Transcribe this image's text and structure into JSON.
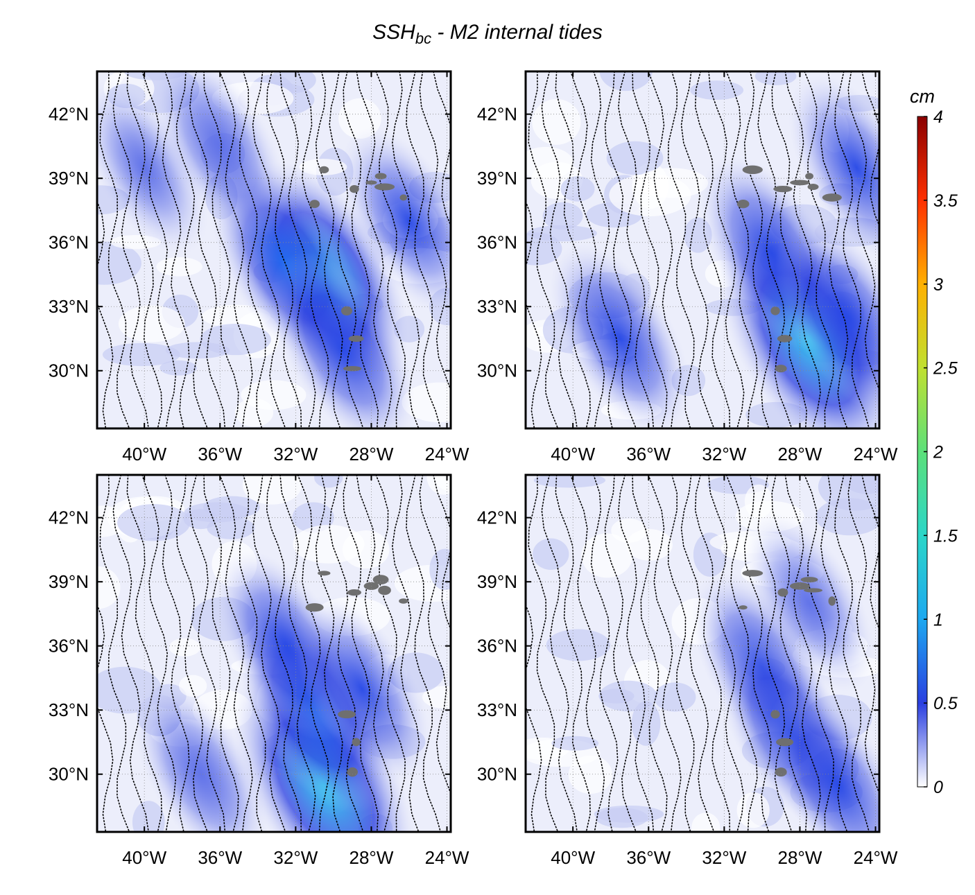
{
  "figure": {
    "title_main": "SSH",
    "title_sub": "bc",
    "title_rest": " - M2 internal tides"
  },
  "chart_data": [
    {
      "type": "heatmap",
      "panel": "top-left",
      "x_range": [
        -42.5,
        -23.8
      ],
      "y_range": [
        27.3,
        44.0
      ],
      "xticks": [
        "40°W",
        "36°W",
        "32°W",
        "28°W",
        "24°W"
      ],
      "yticks": [
        "42°N",
        "39°N",
        "36°N",
        "33°N",
        "30°N"
      ],
      "features": [
        {
          "lon": -30.5,
          "lat": 34.5,
          "amp": 1.0
        },
        {
          "lon": -32.5,
          "lat": 35.0,
          "amp": 0.7
        },
        {
          "lon": -29.5,
          "lat": 31.0,
          "amp": 0.6
        },
        {
          "lon": -36.0,
          "lat": 40.5,
          "amp": 0.45
        },
        {
          "lon": -40.0,
          "lat": 39.5,
          "amp": 0.35
        },
        {
          "lon": -26.0,
          "lat": 37.0,
          "amp": 0.5
        }
      ]
    },
    {
      "type": "heatmap",
      "panel": "top-right",
      "x_range": [
        -42.5,
        -23.8
      ],
      "y_range": [
        27.3,
        44.0
      ],
      "xticks": [
        "40°W",
        "36°W",
        "32°W",
        "28°W",
        "24°W"
      ],
      "yticks": [
        "42°N",
        "39°N",
        "36°N",
        "33°N",
        "30°N"
      ],
      "features": [
        {
          "lon": -27.5,
          "lat": 31.5,
          "amp": 1.2
        },
        {
          "lon": -29.5,
          "lat": 35.5,
          "amp": 0.6
        },
        {
          "lon": -37.5,
          "lat": 31.5,
          "amp": 0.55
        },
        {
          "lon": -25.5,
          "lat": 32.5,
          "amp": 0.6
        },
        {
          "lon": -25.0,
          "lat": 39.5,
          "amp": 0.5
        }
      ]
    },
    {
      "type": "heatmap",
      "panel": "bottom-left",
      "x_range": [
        -42.5,
        -23.8
      ],
      "y_range": [
        27.3,
        44.0
      ],
      "xticks": [
        "40°W",
        "36°W",
        "32°W",
        "28°W",
        "24°W"
      ],
      "yticks": [
        "42°N",
        "39°N",
        "36°N",
        "33°N",
        "30°N"
      ],
      "features": [
        {
          "lon": -30.5,
          "lat": 29.5,
          "amp": 1.2
        },
        {
          "lon": -31.0,
          "lat": 33.0,
          "amp": 0.75
        },
        {
          "lon": -32.5,
          "lat": 36.0,
          "amp": 0.55
        },
        {
          "lon": -37.0,
          "lat": 30.0,
          "amp": 0.45
        },
        {
          "lon": -28.5,
          "lat": 34.0,
          "amp": 0.5
        }
      ]
    },
    {
      "type": "heatmap",
      "panel": "bottom-right",
      "x_range": [
        -42.5,
        -23.8
      ],
      "y_range": [
        27.3,
        44.0
      ],
      "xticks": [
        "40°W",
        "36°W",
        "32°W",
        "28°W",
        "24°W"
      ],
      "yticks": [
        "42°N",
        "39°N",
        "36°N",
        "33°N",
        "30°N"
      ],
      "features": [
        {
          "lon": -30.0,
          "lat": 35.0,
          "amp": 0.55
        },
        {
          "lon": -28.5,
          "lat": 32.0,
          "amp": 0.6
        },
        {
          "lon": -26.0,
          "lat": 29.5,
          "amp": 0.55
        },
        {
          "lon": -27.5,
          "lat": 38.0,
          "amp": 0.4
        }
      ]
    }
  ],
  "colorbar": {
    "unit": "cm",
    "range": [
      0,
      4
    ],
    "ticks": [
      "0",
      "0.5",
      "1",
      "1.5",
      "2",
      "2.5",
      "3",
      "3.5",
      "4"
    ],
    "colors": [
      "#ffffff",
      "#2a3fe0",
      "#1da8f0",
      "#2bd6c8",
      "#5ce07a",
      "#c0e030",
      "#ffb000",
      "#ff3000",
      "#8a0000"
    ]
  }
}
